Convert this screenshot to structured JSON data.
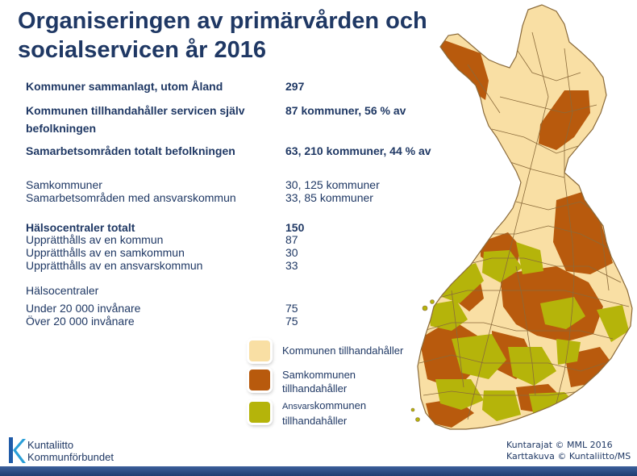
{
  "title": "Organiseringen av primärvården och socialservicen år 2016",
  "stats": [
    {
      "label": "Kommuner sammanlagt, utom Åland",
      "value": "297",
      "bold": true
    },
    {
      "label": "Kommunen tillhandahåller servicen själv befolkningen",
      "value": "87 kommuner, 56 % av",
      "bold": true
    },
    {
      "label": "Samarbetsområden totalt befolkningen",
      "value": "63, 210 kommuner, 44 % av",
      "bold": true
    },
    {
      "label": "Samkommuner",
      "value": "30, 125 kommuner",
      "bold": false
    },
    {
      "label": "Samarbetsområden med ansvarskommun",
      "value": "33, 85 kommuner",
      "bold": false
    },
    {
      "label": "Hälsocentraler totalt",
      "value": "150",
      "bold": true
    },
    {
      "label": "Upprätthålls av en kommun",
      "value": "87",
      "bold": false
    },
    {
      "label": "Upprätthålls av en samkommun",
      "value": "30",
      "bold": false
    },
    {
      "label": "Upprätthålls av en ansvarskommun",
      "value": "33",
      "bold": false
    },
    {
      "label": "Hälsocentraler",
      "value": "",
      "bold": false
    },
    {
      "label": "Under 20 000 invånare",
      "value": "75",
      "bold": false
    },
    {
      "label": "Över 20 000 invånare",
      "value": "75",
      "bold": false
    }
  ],
  "legend": [
    {
      "label": "Kommunen tillhandahåller",
      "color": "#f9dfa4"
    },
    {
      "label": "Samkommunen tillhandahåller",
      "color": "#b85a0d"
    },
    {
      "label_small": "Ansvars",
      "label": "kommunen tillhandahåller",
      "color": "#b5b40a"
    }
  ],
  "map_colors": {
    "kommun": "#f9dfa4",
    "samkommun": "#b85a0d",
    "ansvarskommun": "#b5b40a",
    "border": "#8a6a3a"
  },
  "logo": {
    "line1": "Kuntaliitto",
    "line2": "Kommunförbundet"
  },
  "credits": {
    "line1": "Kuntarajat © MML 2016",
    "line2": "Karttakuva © Kuntaliitto/MS"
  }
}
